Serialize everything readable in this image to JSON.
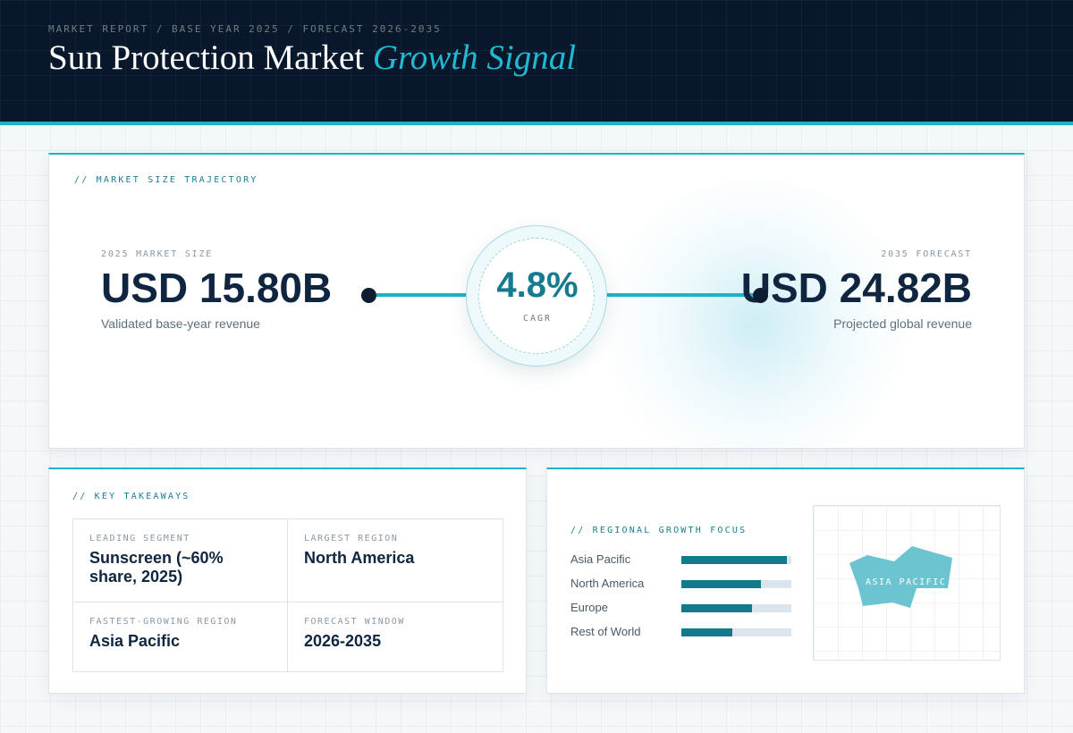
{
  "header": {
    "kicker": "MARKET REPORT / BASE YEAR 2025 / FORECAST 2026-2035",
    "title_main": "Sun Protection Market",
    "title_accent": "Growth Signal"
  },
  "trajectory": {
    "section_label": "// MARKET SIZE TRAJECTORY",
    "base": {
      "label": "2025 MARKET SIZE",
      "value": "USD 15.80B",
      "caption": "Validated base-year revenue"
    },
    "cagr": {
      "value": "4.8%",
      "label": "CAGR"
    },
    "forecast": {
      "label": "2035 FORECAST",
      "value": "USD 24.82B",
      "caption": "Projected global revenue"
    }
  },
  "takeaways": {
    "section_label": "// KEY TAKEAWAYS",
    "items": [
      {
        "label": "LEADING SEGMENT",
        "value": "Sunscreen (~60% share, 2025)"
      },
      {
        "label": "LARGEST REGION",
        "value": "North America"
      },
      {
        "label": "FASTEST-GROWING REGION",
        "value": "Asia Pacific"
      },
      {
        "label": "FORECAST WINDOW",
        "value": "2026-2035"
      }
    ]
  },
  "regional": {
    "section_label": "// REGIONAL GROWTH FOCUS",
    "bars": [
      {
        "name": "Asia Pacific",
        "level": 0.96
      },
      {
        "name": "North America",
        "level": 0.72
      },
      {
        "name": "Europe",
        "level": 0.64
      },
      {
        "name": "Rest of World",
        "level": 0.46
      }
    ],
    "map_label": "ASIA PACIFIC"
  },
  "colors": {
    "accent": "#1cb2cc",
    "header_bg": "#08182a",
    "bar_fill": "#127a8c",
    "map_fill": "#6cc4d0"
  }
}
